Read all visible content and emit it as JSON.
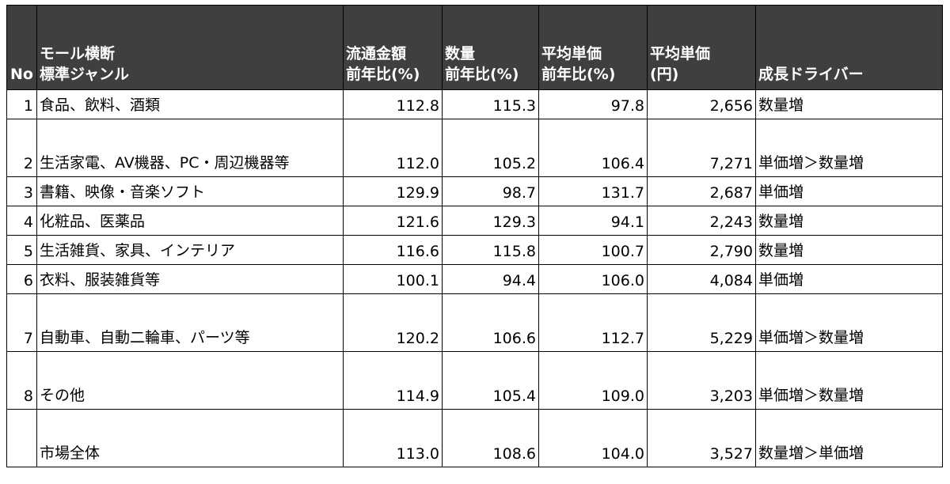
{
  "table": {
    "headers": {
      "no": "No",
      "genre": [
        "モール横断",
        "標準ジャンル"
      ],
      "gmv": [
        "流通金額",
        "前年比(%)"
      ],
      "qty": [
        "数量",
        "前年比(%)"
      ],
      "avg_yoy": [
        "平均単価",
        "前年比(%)"
      ],
      "avg_price": [
        "平均単価",
        "(円)"
      ],
      "driver": [
        "",
        "成長ドライバー"
      ]
    },
    "rows": [
      {
        "no": "1",
        "genre": "食品、飲料、酒類",
        "gmv": "112.8",
        "qty": "115.3",
        "avg_yoy": "97.8",
        "avg_price": "2,656",
        "driver": "数量増"
      },
      {
        "no": "2",
        "genre": "生活家電、AV機器、PC・周辺機器等",
        "gmv": "112.0",
        "qty": "105.2",
        "avg_yoy": "106.4",
        "avg_price": "7,271",
        "driver": "単価増＞数量増"
      },
      {
        "no": "3",
        "genre": "書籍、映像・音楽ソフト",
        "gmv": "129.9",
        "qty": "98.7",
        "avg_yoy": "131.7",
        "avg_price": "2,687",
        "driver": "単価増"
      },
      {
        "no": "4",
        "genre": "化粧品、医薬品",
        "gmv": "121.6",
        "qty": "129.3",
        "avg_yoy": "94.1",
        "avg_price": "2,243",
        "driver": "数量増"
      },
      {
        "no": "5",
        "genre": "生活雑貨、家具、インテリア",
        "gmv": "116.6",
        "qty": "115.8",
        "avg_yoy": "100.7",
        "avg_price": "2,790",
        "driver": "数量増"
      },
      {
        "no": "6",
        "genre": "衣料、服装雑貨等",
        "gmv": "100.1",
        "qty": "94.4",
        "avg_yoy": "106.0",
        "avg_price": "4,084",
        "driver": "単価増"
      },
      {
        "no": "7",
        "genre": "自動車、自動二輪車、パーツ等",
        "gmv": "120.2",
        "qty": "106.6",
        "avg_yoy": "112.7",
        "avg_price": "5,229",
        "driver": "単価増＞数量増"
      },
      {
        "no": "8",
        "genre": "その他",
        "gmv": "114.9",
        "qty": "105.4",
        "avg_yoy": "109.0",
        "avg_price": "3,203",
        "driver": "単価増＞数量増"
      },
      {
        "no": "",
        "genre": "市場全体",
        "gmv": "113.0",
        "qty": "108.6",
        "avg_yoy": "104.0",
        "avg_price": "3,527",
        "driver": "数量増＞単価増"
      }
    ]
  }
}
